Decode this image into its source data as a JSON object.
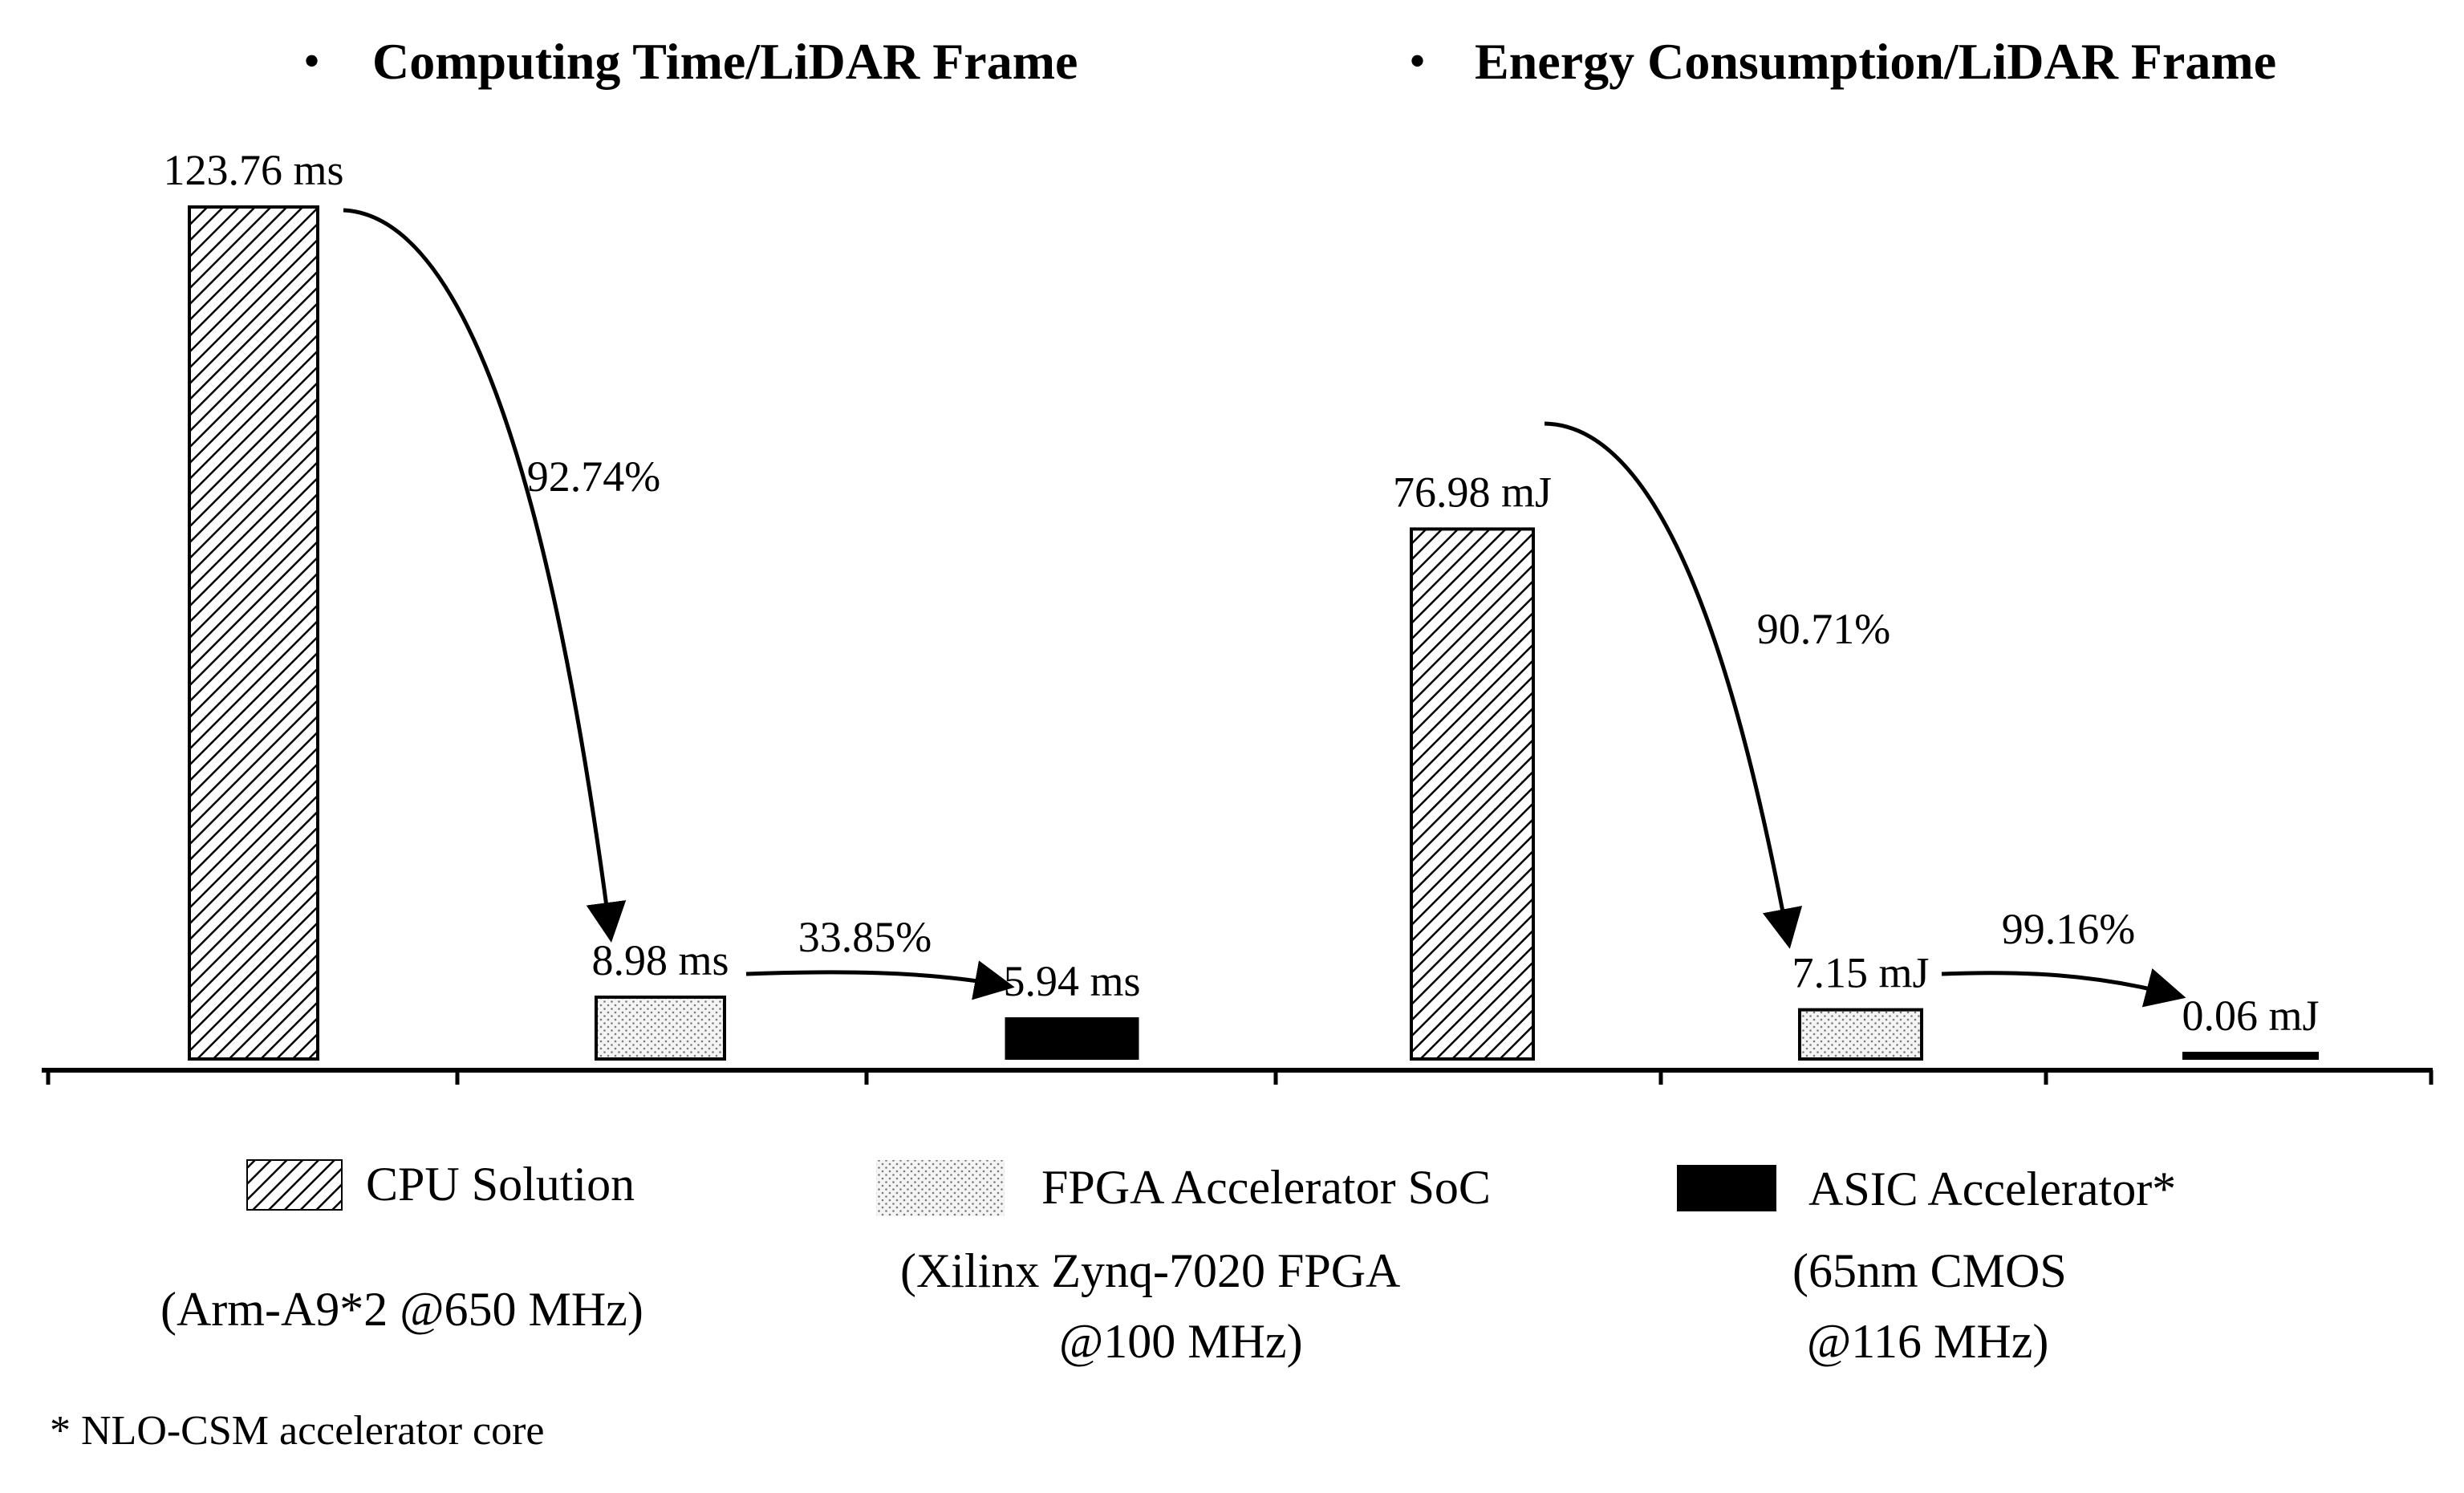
{
  "chart_data": {
    "type": "bar",
    "panels": [
      {
        "title": "Computing Time/LiDAR Frame",
        "unit": "ms",
        "categories": [
          "CPU Solution",
          "FPGA Accelerator SoC",
          "ASIC Accelerator*"
        ],
        "values": [
          123.76,
          8.98,
          5.94
        ],
        "labels": [
          "123.76 ms",
          "8.98 ms",
          "5.94 ms"
        ],
        "ylim": [
          0,
          123.76
        ],
        "reductions": [
          {
            "from": 0,
            "to": 1,
            "label": "92.74%"
          },
          {
            "from": 1,
            "to": 2,
            "label": "33.85%"
          }
        ]
      },
      {
        "title": "Energy Consumption/LiDAR Frame",
        "unit": "mJ",
        "categories": [
          "CPU Solution",
          "FPGA Accelerator SoC",
          "ASIC Accelerator*"
        ],
        "values": [
          76.98,
          7.15,
          0.06
        ],
        "labels": [
          "76.98 mJ",
          "7.15 mJ",
          "0.06 mJ"
        ],
        "ylim": [
          0,
          123.76
        ],
        "reductions": [
          {
            "from": 0,
            "to": 1,
            "label": "90.71%"
          },
          {
            "from": 1,
            "to": 2,
            "label": "99.16%"
          }
        ]
      }
    ],
    "legend": [
      {
        "name": "CPU Solution",
        "pattern": "diagonal-hatch",
        "desc": [
          "(Arm-A9*2 @650 MHz)"
        ]
      },
      {
        "name": "FPGA Accelerator SoC",
        "pattern": "dots",
        "desc": [
          "(Xilinx Zynq-7020 FPGA",
          "@100 MHz)"
        ]
      },
      {
        "name": "ASIC Accelerator*",
        "pattern": "solid-black",
        "desc": [
          "(65nm CMOS",
          "@116 MHz)"
        ]
      }
    ],
    "footnote": "* NLO-CSM accelerator core",
    "colors": {
      "ink": "#000000",
      "background": "#ffffff",
      "dot_fill": "#f2f2f2"
    }
  }
}
